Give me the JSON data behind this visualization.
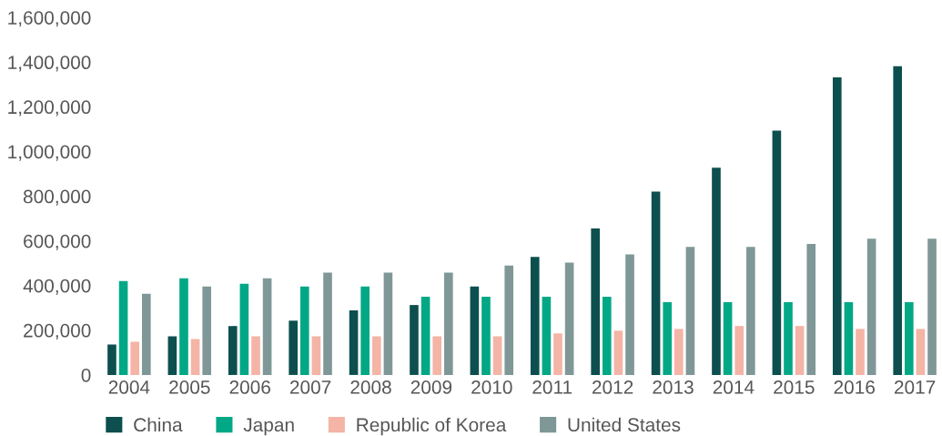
{
  "chart_data": {
    "type": "bar",
    "categories": [
      "2004",
      "2005",
      "2006",
      "2007",
      "2008",
      "2009",
      "2010",
      "2011",
      "2012",
      "2013",
      "2014",
      "2015",
      "2016",
      "2017"
    ],
    "series": [
      {
        "name": "China",
        "color": "#0d4f4f",
        "values": [
          136000,
          173000,
          219000,
          243000,
          289000,
          313000,
          396000,
          528000,
          656000,
          821000,
          928000,
          1093000,
          1332000,
          1382000
        ]
      },
      {
        "name": "Japan",
        "color": "#00a886",
        "values": [
          420000,
          433000,
          408000,
          396000,
          396000,
          350000,
          350000,
          350000,
          350000,
          326000,
          326000,
          326000,
          326000,
          326000
        ]
      },
      {
        "name": "Republic of Korea",
        "color": "#f4b4a6",
        "values": [
          148000,
          161000,
          173000,
          173000,
          173000,
          173000,
          173000,
          186000,
          198000,
          206000,
          219000,
          219000,
          206000,
          206000
        ]
      },
      {
        "name": "United States",
        "color": "#7f9797",
        "values": [
          363000,
          396000,
          433000,
          458000,
          458000,
          458000,
          490000,
          503000,
          540000,
          573000,
          573000,
          586000,
          610000,
          610000
        ]
      }
    ],
    "ylim": [
      0,
      1600000
    ],
    "yticks": [
      0,
      {
        "value": 200000,
        "label": "200,000"
      },
      {
        "value": 400000,
        "label": "400,000"
      },
      {
        "value": 600000,
        "label": "600,000"
      },
      {
        "value": 800000,
        "label": "800,000"
      },
      {
        "value": 1000000,
        "label": "1,000,000"
      },
      {
        "value": 1200000,
        "label": "1,200,000"
      },
      {
        "value": 1400000,
        "label": "1,400,000"
      },
      {
        "value": 1600000,
        "label": "1,600,000"
      }
    ],
    "grid": false,
    "legend": "bottom left"
  }
}
